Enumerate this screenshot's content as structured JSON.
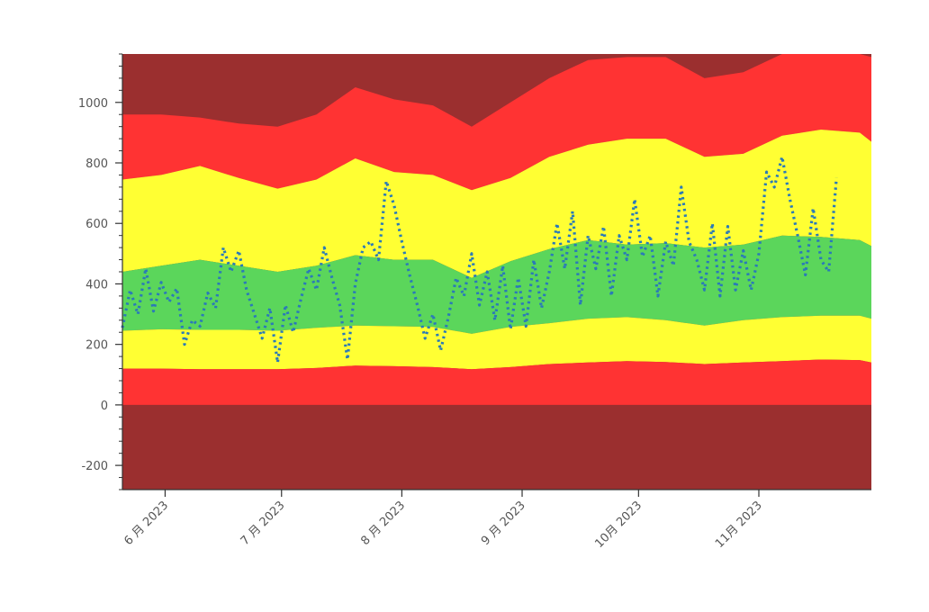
{
  "chart_data": {
    "type": "area",
    "title": "",
    "xlabel": "",
    "ylabel": "",
    "ylim": [
      -280,
      1160
    ],
    "xlim": [
      "2023-05-21",
      "2023-11-30"
    ],
    "y_ticks": [
      {
        "value": 1000,
        "label": "1000"
      },
      {
        "value": 800,
        "label": "800"
      },
      {
        "value": 600,
        "label": "600"
      },
      {
        "value": 400,
        "label": "400"
      },
      {
        "value": 200,
        "label": "200"
      },
      {
        "value": 0,
        "label": "0"
      },
      {
        "value": -200,
        "label": "-200"
      }
    ],
    "x_ticks": [
      {
        "date": "2023-06-01",
        "label": "6 月 2023"
      },
      {
        "date": "2023-07-01",
        "label": "7 月 2023"
      },
      {
        "date": "2023-08-01",
        "label": "8 月 2023"
      },
      {
        "date": "2023-09-01",
        "label": "9 月 2023"
      },
      {
        "date": "2023-10-01",
        "label": "10月 2023"
      },
      {
        "date": "2023-11-01",
        "label": "11月 2023"
      }
    ],
    "colors": {
      "dark_red": "#9b2f2f",
      "red": "#ff3333",
      "yellow": "#ffff33",
      "green": "#5bd65b",
      "line": "#2a7ab8",
      "axis": "#333333"
    },
    "band_dates": [
      "2023-05-21",
      "2023-05-31",
      "2023-06-10",
      "2023-06-20",
      "2023-06-30",
      "2023-07-10",
      "2023-07-20",
      "2023-07-30",
      "2023-08-09",
      "2023-08-19",
      "2023-08-29",
      "2023-09-08",
      "2023-09-18",
      "2023-09-28",
      "2023-10-08",
      "2023-10-18",
      "2023-10-28",
      "2023-11-07",
      "2023-11-17",
      "2023-11-27",
      "2023-11-30"
    ],
    "bands": {
      "red_lower": [
        120,
        120,
        118,
        118,
        118,
        122,
        130,
        128,
        125,
        118,
        125,
        135,
        140,
        145,
        142,
        135,
        140,
        145,
        150,
        148,
        140
      ],
      "yellow_lower": [
        245,
        250,
        248,
        248,
        245,
        255,
        262,
        260,
        258,
        235,
        258,
        270,
        285,
        290,
        280,
        262,
        280,
        290,
        295,
        295,
        285
      ],
      "green_upper": [
        440,
        460,
        480,
        460,
        440,
        460,
        495,
        480,
        480,
        420,
        475,
        515,
        545,
        530,
        535,
        520,
        530,
        560,
        555,
        545,
        525
      ],
      "yellow_upper": [
        745,
        760,
        790,
        750,
        715,
        745,
        815,
        770,
        760,
        710,
        750,
        820,
        860,
        880,
        880,
        820,
        830,
        890,
        910,
        900,
        870
      ],
      "red_upper": [
        960,
        960,
        950,
        930,
        920,
        960,
        1050,
        1010,
        990,
        920,
        1000,
        1080,
        1140,
        1150,
        1150,
        1080,
        1100,
        1160,
        1160,
        1160,
        1150
      ]
    },
    "series": [
      {
        "values": [
          [
            "2023-05-21",
            255
          ],
          [
            "2023-05-23",
            380
          ],
          [
            "2023-05-25",
            300
          ],
          [
            "2023-05-27",
            450
          ],
          [
            "2023-05-29",
            310
          ],
          [
            "2023-05-31",
            405
          ],
          [
            "2023-06-02",
            340
          ],
          [
            "2023-06-04",
            385
          ],
          [
            "2023-06-06",
            200
          ],
          [
            "2023-06-08",
            280
          ],
          [
            "2023-06-10",
            260
          ],
          [
            "2023-06-12",
            370
          ],
          [
            "2023-06-14",
            320
          ],
          [
            "2023-06-16",
            520
          ],
          [
            "2023-06-18",
            440
          ],
          [
            "2023-06-20",
            510
          ],
          [
            "2023-06-22",
            380
          ],
          [
            "2023-06-24",
            300
          ],
          [
            "2023-06-26",
            220
          ],
          [
            "2023-06-28",
            320
          ],
          [
            "2023-06-30",
            140
          ],
          [
            "2023-07-02",
            330
          ],
          [
            "2023-07-04",
            240
          ],
          [
            "2023-07-06",
            350
          ],
          [
            "2023-07-08",
            450
          ],
          [
            "2023-07-10",
            380
          ],
          [
            "2023-07-12",
            520
          ],
          [
            "2023-07-14",
            420
          ],
          [
            "2023-07-16",
            330
          ],
          [
            "2023-07-18",
            150
          ],
          [
            "2023-07-20",
            400
          ],
          [
            "2023-07-22",
            520
          ],
          [
            "2023-07-24",
            540
          ],
          [
            "2023-07-26",
            480
          ],
          [
            "2023-07-28",
            740
          ],
          [
            "2023-07-30",
            660
          ],
          [
            "2023-08-01",
            540
          ],
          [
            "2023-08-03",
            430
          ],
          [
            "2023-08-05",
            330
          ],
          [
            "2023-08-07",
            220
          ],
          [
            "2023-08-09",
            300
          ],
          [
            "2023-08-11",
            180
          ],
          [
            "2023-08-13",
            290
          ],
          [
            "2023-08-15",
            420
          ],
          [
            "2023-08-17",
            360
          ],
          [
            "2023-08-19",
            500
          ],
          [
            "2023-08-21",
            330
          ],
          [
            "2023-08-23",
            440
          ],
          [
            "2023-08-25",
            280
          ],
          [
            "2023-08-27",
            460
          ],
          [
            "2023-08-29",
            250
          ],
          [
            "2023-08-31",
            420
          ],
          [
            "2023-09-02",
            260
          ],
          [
            "2023-09-04",
            480
          ],
          [
            "2023-09-06",
            320
          ],
          [
            "2023-09-08",
            440
          ],
          [
            "2023-09-10",
            600
          ],
          [
            "2023-09-12",
            450
          ],
          [
            "2023-09-14",
            640
          ],
          [
            "2023-09-16",
            330
          ],
          [
            "2023-09-18",
            560
          ],
          [
            "2023-09-20",
            450
          ],
          [
            "2023-09-22",
            590
          ],
          [
            "2023-09-24",
            360
          ],
          [
            "2023-09-26",
            560
          ],
          [
            "2023-09-28",
            480
          ],
          [
            "2023-09-30",
            680
          ],
          [
            "2023-10-02",
            490
          ],
          [
            "2023-10-04",
            560
          ],
          [
            "2023-10-06",
            360
          ],
          [
            "2023-10-08",
            540
          ],
          [
            "2023-10-10",
            460
          ],
          [
            "2023-10-12",
            720
          ],
          [
            "2023-10-14",
            540
          ],
          [
            "2023-10-16",
            480
          ],
          [
            "2023-10-18",
            380
          ],
          [
            "2023-10-20",
            600
          ],
          [
            "2023-10-22",
            360
          ],
          [
            "2023-10-24",
            590
          ],
          [
            "2023-10-26",
            380
          ],
          [
            "2023-10-28",
            510
          ],
          [
            "2023-10-30",
            380
          ],
          [
            "2023-11-01",
            500
          ],
          [
            "2023-11-03",
            770
          ],
          [
            "2023-11-05",
            720
          ],
          [
            "2023-11-07",
            820
          ],
          [
            "2023-11-09",
            680
          ],
          [
            "2023-11-11",
            560
          ],
          [
            "2023-11-13",
            430
          ],
          [
            "2023-11-15",
            650
          ],
          [
            "2023-11-17",
            480
          ],
          [
            "2023-11-19",
            440
          ],
          [
            "2023-11-21",
            750
          ]
        ]
      }
    ],
    "grid": false,
    "legend": "none"
  }
}
